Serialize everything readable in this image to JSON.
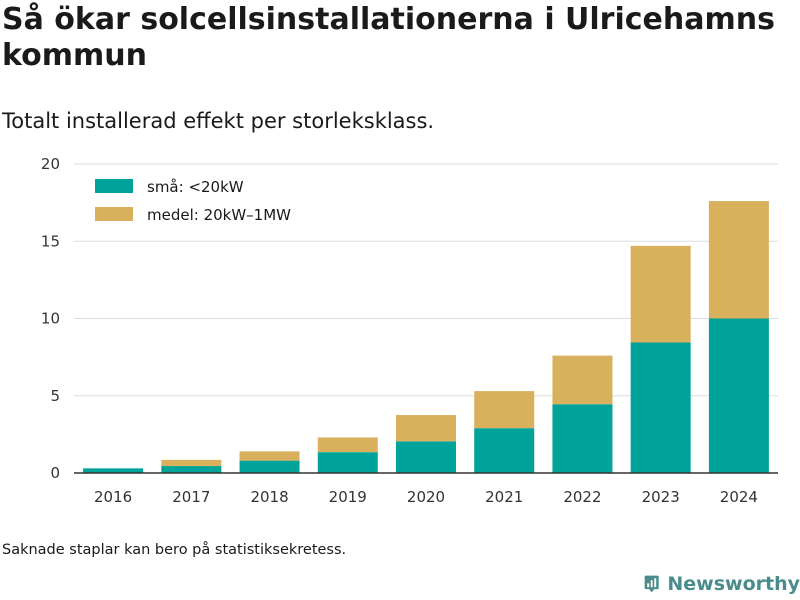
{
  "header": {
    "title": "Så ökar solcellsinstallationerna i Ulricehamns kommun",
    "subtitle": "Totalt installerad effekt per storleksklass."
  },
  "footer": {
    "note": "Saknade staplar kan bero på statistiksekretess.",
    "brand": "Newsworthy",
    "brand_icon": "bar-chart-logo-icon"
  },
  "colors": {
    "small": "#00a39a",
    "medium": "#d9b05c",
    "brand": "#4a8c8c",
    "grid": "#dddddd",
    "axis": "#333333"
  },
  "chart_data": {
    "type": "bar",
    "stacked": true,
    "categories": [
      "2016",
      "2017",
      "2018",
      "2019",
      "2020",
      "2021",
      "2022",
      "2023",
      "2024"
    ],
    "series": [
      {
        "name": "små: <20kW",
        "values": [
          0.3,
          0.45,
          0.8,
          1.35,
          2.05,
          2.9,
          4.45,
          8.45,
          10.0
        ]
      },
      {
        "name": "medel: 20kW–1MW",
        "values": [
          0.0,
          0.4,
          0.6,
          0.95,
          1.7,
          2.4,
          3.15,
          6.25,
          7.6
        ]
      }
    ],
    "ylim": [
      0,
      20
    ],
    "yticks": [
      0,
      5,
      10,
      15,
      20
    ],
    "grid": true,
    "legend": "top-left"
  }
}
